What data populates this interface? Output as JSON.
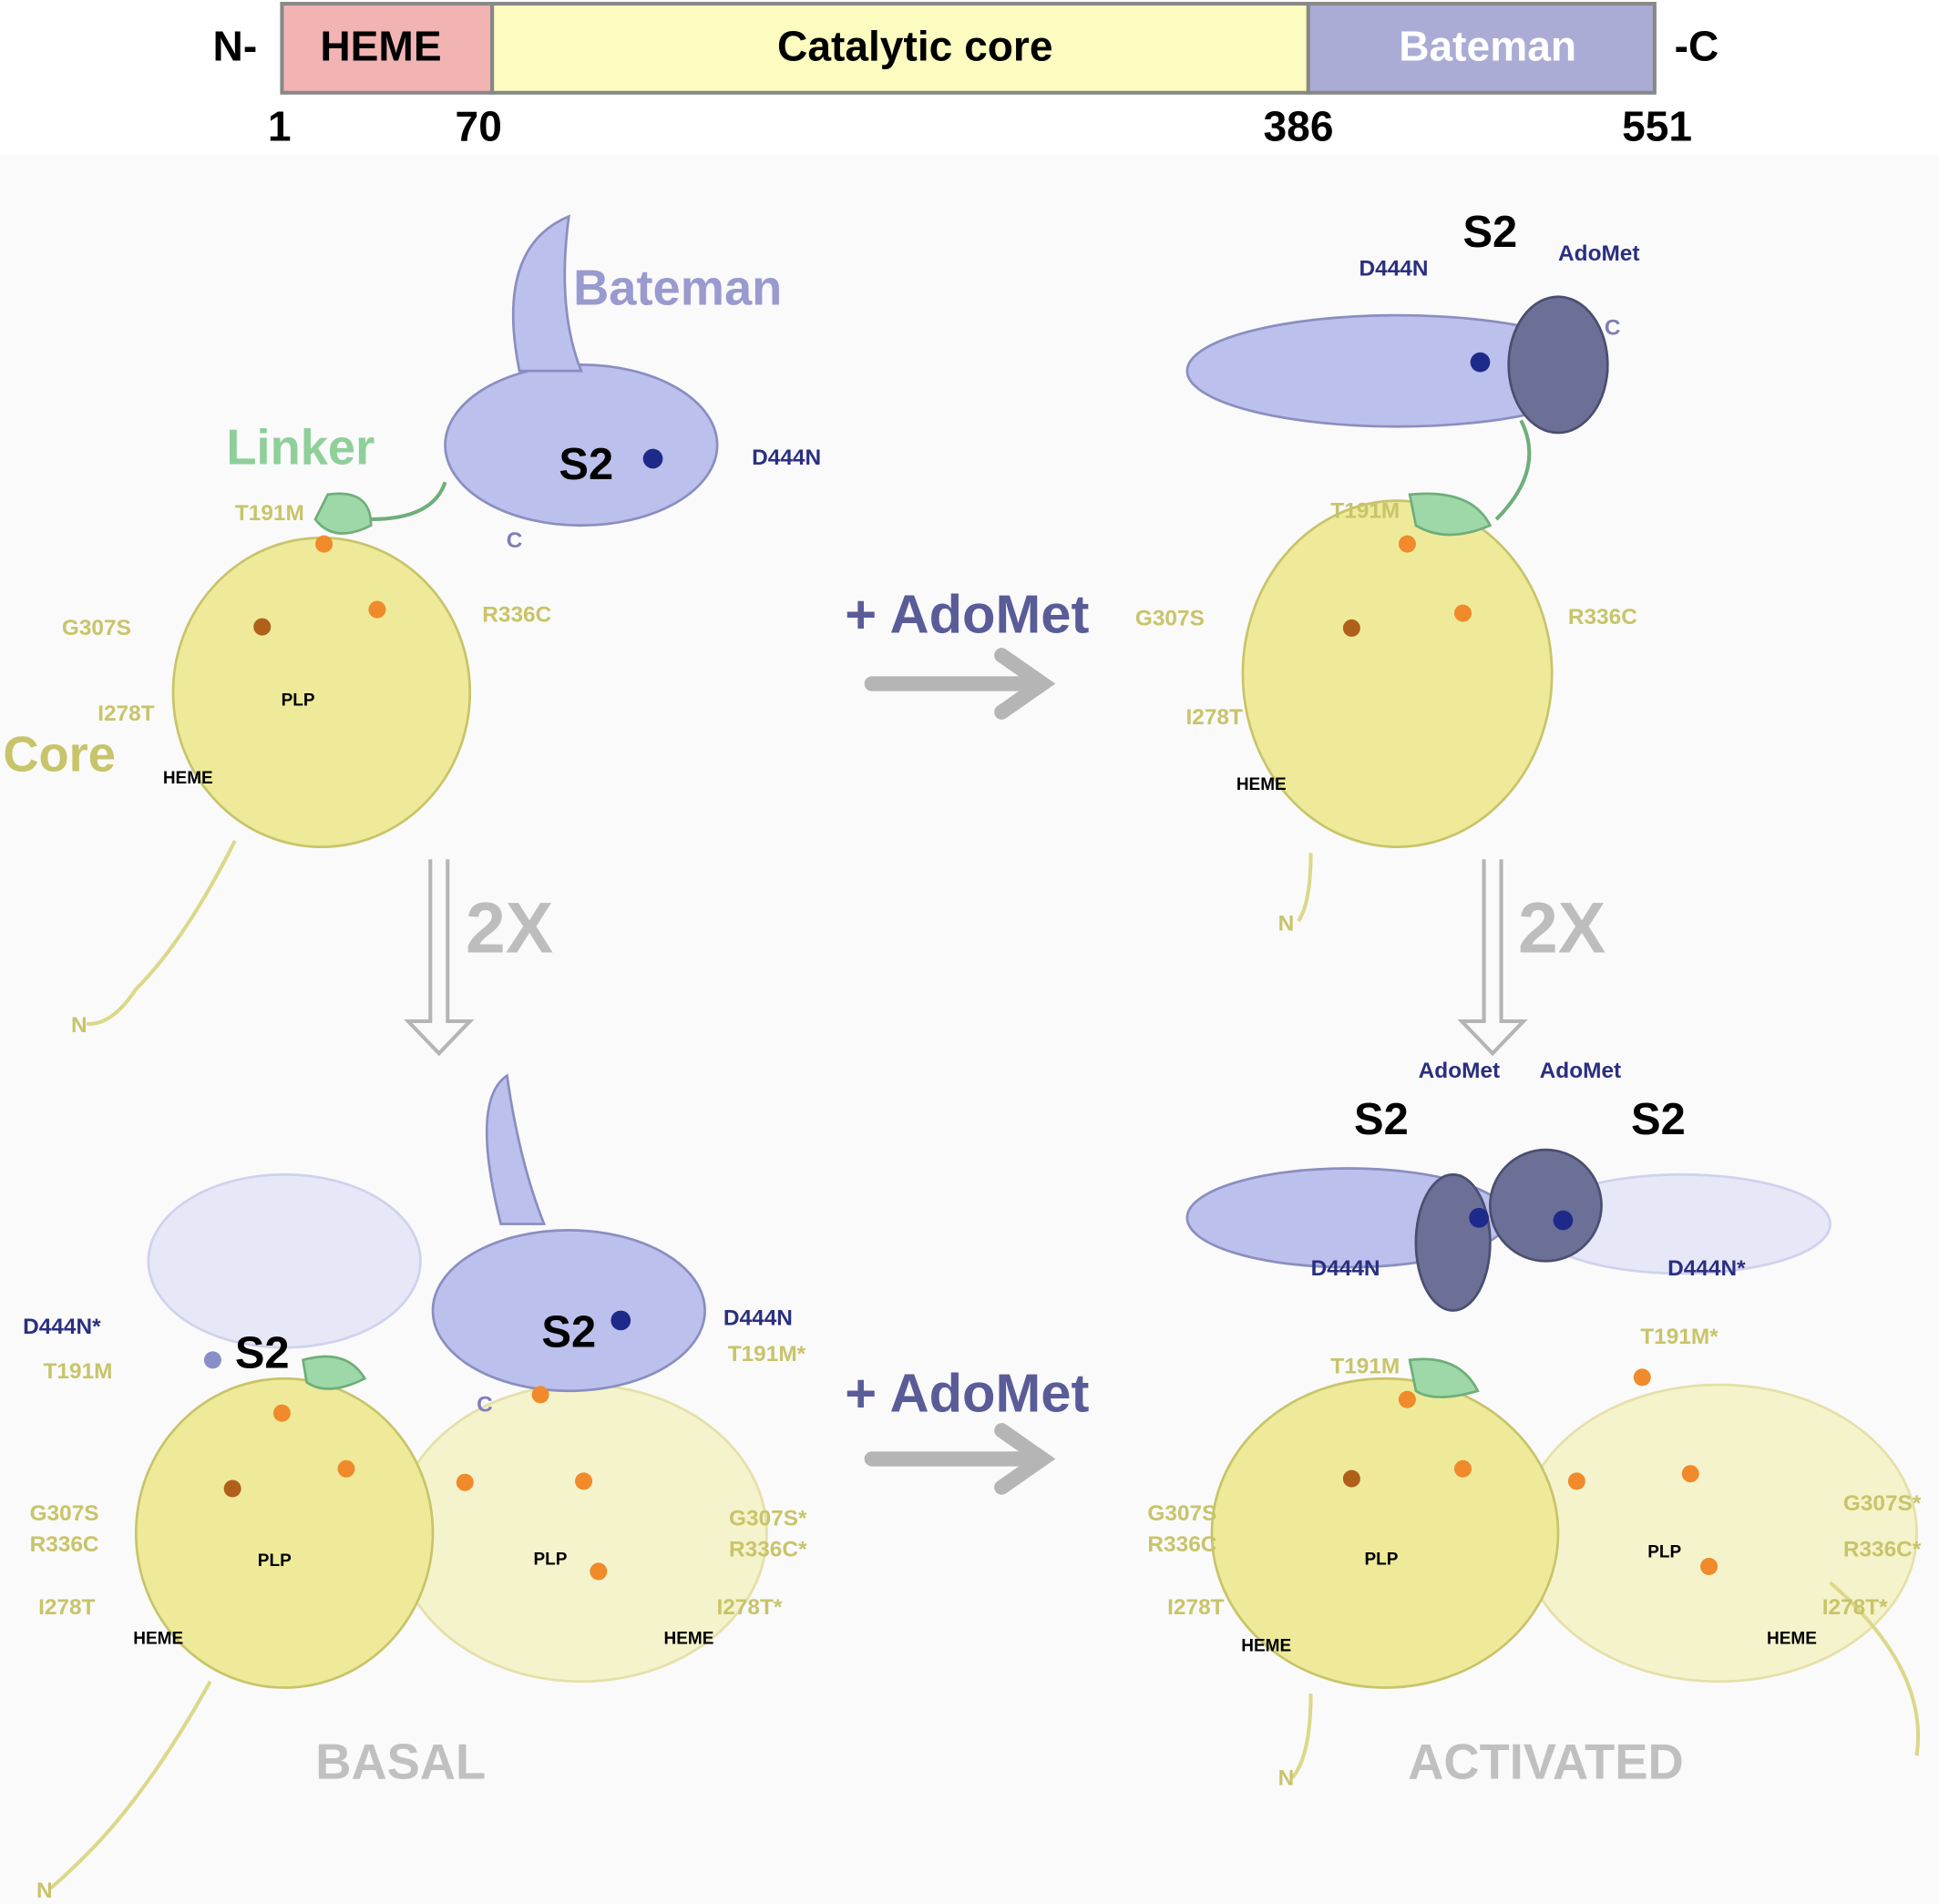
{
  "domain_map": {
    "n_label": "N-",
    "c_label": "-C",
    "domains": [
      {
        "name": "HEME"
      },
      {
        "name": "Catalytic core"
      },
      {
        "name": "Bateman"
      }
    ],
    "positions": [
      1,
      70,
      386,
      551
    ]
  },
  "transitions": {
    "adomet_top": "+ AdoMet",
    "adomet_bottom": "+ AdoMet",
    "dimer_left": "2X",
    "dimer_right": "2X"
  },
  "panels": [
    {
      "labels": [
        "Bateman",
        "Linker",
        "Core",
        "S2",
        "D444N",
        "C",
        "T191M",
        "G307S",
        "R336C",
        "I278T",
        "PLP",
        "HEME",
        "N"
      ]
    },
    {
      "labels": [
        "S2",
        "D444N",
        "AdoMet",
        "C",
        "T191M",
        "G307S",
        "R336C",
        "I278T",
        "HEME",
        "N"
      ]
    },
    {
      "labels": [
        "D444N*",
        "S2",
        "S2",
        "D444N",
        "T191M",
        "T191M*",
        "G307S",
        "R336C",
        "PLP",
        "PLP",
        "G307S*",
        "R336C*",
        "I278T",
        "I278T*",
        "HEME",
        "HEME",
        "C",
        "BASAL",
        "N"
      ]
    },
    {
      "labels": [
        "AdoMet",
        "AdoMet",
        "S2",
        "S2",
        "D444N",
        "D444N*",
        "T191M",
        "T191M*",
        "G307S",
        "R336C",
        "PLP",
        "PLP",
        "G307S*",
        "R336C*",
        "I278T",
        "I278T*",
        "HEME",
        "HEME",
        "ACTIVATED",
        "N"
      ]
    }
  ]
}
